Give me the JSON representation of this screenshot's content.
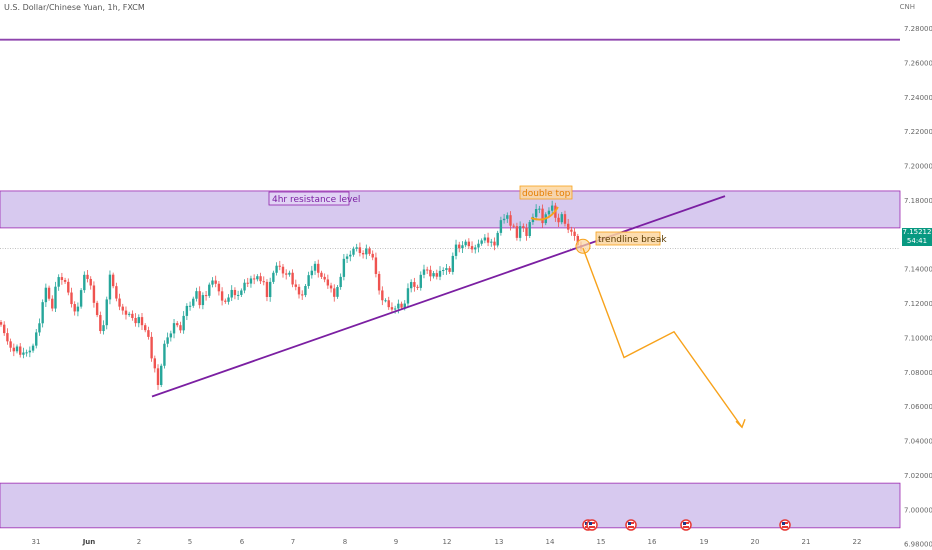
{
  "header": {
    "title": "U.S. Dollar/Chinese Yuan, 1h, FXCM",
    "currency": "CNH"
  },
  "price_tag": {
    "price": "7.15212",
    "countdown": "54:41"
  },
  "colors": {
    "up": "#26a69a",
    "down": "#ef5350",
    "zone_fill": "#d7c9ef",
    "zone_border": "#9c27b0",
    "trendline": "#7b1fa2",
    "projection": "#f7a21b",
    "price_tag": "#089981"
  },
  "annotations": {
    "resistance_label": "4hr resistance level",
    "double_top_label": "double top",
    "trendline_break_label": "trendline break"
  },
  "chart_data": {
    "type": "candlestick",
    "symbol": "U.S. Dollar/Chinese Yuan",
    "interval": "1h",
    "source": "FXCM",
    "y_ticks": [
      "7.28000",
      "7.26000",
      "7.24000",
      "7.22000",
      "7.20000",
      "7.18000",
      "7.16000",
      "7.14000",
      "7.12000",
      "7.10000",
      "7.08000",
      "7.06000",
      "7.04000",
      "7.02000",
      "7.00000",
      "6.98000"
    ],
    "x_ticks": [
      "31",
      "Jun",
      "2",
      "5",
      "6",
      "7",
      "8",
      "9",
      "12",
      "13",
      "14",
      "15",
      "16",
      "19",
      "20",
      "21",
      "22"
    ],
    "ylim": [
      6.9766,
      7.2966
    ],
    "current_price": 7.15212,
    "resistance_line": 7.2735,
    "resistance_zone": [
      7.164,
      7.1855
    ],
    "support_zone": [
      6.9895,
      7.0155
    ],
    "trendline": {
      "start": [
        "Jun 2",
        7.0659
      ],
      "end": [
        "Jun 16",
        7.1825
      ]
    },
    "projection_path": [
      7.1522,
      7.0886,
      7.1036,
      7.048
    ],
    "candles_close": [
      7.1077,
      7.1028,
      7.098,
      7.0943,
      7.0922,
      7.095,
      7.0902,
      7.0915,
      7.0916,
      7.0926,
      7.0955,
      7.1032,
      7.1085,
      7.1208,
      7.1292,
      7.1228,
      7.1171,
      7.1298,
      7.1354,
      7.1337,
      7.1326,
      7.1264,
      7.1197,
      7.1154,
      7.1182,
      7.1278,
      7.1367,
      7.1343,
      7.1305,
      7.1204,
      7.1133,
      7.104,
      7.1074,
      7.1224,
      7.1368,
      7.1301,
      7.1229,
      7.1182,
      7.1159,
      7.1135,
      7.114,
      7.1116,
      7.1086,
      7.1121,
      7.1074,
      7.1045,
      7.1006,
      7.0881,
      7.0823,
      7.0726,
      7.0838,
      7.0966,
      7.1003,
      7.1026,
      7.1086,
      7.1074,
      7.1044,
      7.1128,
      7.1186,
      7.1187,
      7.1228,
      7.1272,
      7.1191,
      7.1249,
      7.1245,
      7.131,
      7.1334,
      7.1315,
      7.1271,
      7.1217,
      7.121,
      7.1235,
      7.1279,
      7.1249,
      7.125,
      7.1276,
      7.1321,
      7.1316,
      7.1346,
      7.1341,
      7.1359,
      7.133,
      7.1326,
      7.1238,
      7.1326,
      7.1379,
      7.142,
      7.1414,
      7.1375,
      7.1368,
      7.1379,
      7.1311,
      7.1297,
      7.1253,
      7.1249,
      7.1302,
      7.1365,
      7.1391,
      7.1431,
      7.1379,
      7.1355,
      7.134,
      7.1305,
      7.1288,
      7.1239,
      7.1296,
      7.1355,
      7.146,
      7.1474,
      7.1484,
      7.1519,
      7.1527,
      7.1494,
      7.1486,
      7.1519,
      7.1489,
      7.1468,
      7.1372,
      7.1276,
      7.1219,
      7.1219,
      7.1179,
      7.1165,
      7.1171,
      7.1199,
      7.1176,
      7.12,
      7.1289,
      7.1325,
      7.1297,
      7.1291,
      7.1367,
      7.1398,
      7.1396,
      7.1358,
      7.1377,
      7.1356,
      7.139,
      7.1395,
      7.1406,
      7.1384,
      7.1477,
      7.1543,
      7.1522,
      7.1539,
      7.156,
      7.1534,
      7.1515,
      7.1526,
      7.1548,
      7.1567,
      7.1584,
      7.1554,
      7.156,
      7.1538,
      7.1611,
      7.1685,
      7.1693,
      7.1714,
      7.1653,
      7.165,
      7.1582,
      7.165,
      7.164,
      7.1593,
      7.1674,
      7.1704,
      7.175,
      7.1752,
      7.1668,
      7.1719,
      7.174,
      7.177,
      7.1699,
      7.1673,
      7.172,
      7.1664,
      7.163,
      7.1618,
      7.1593,
      7.154,
      7.1521
    ]
  }
}
